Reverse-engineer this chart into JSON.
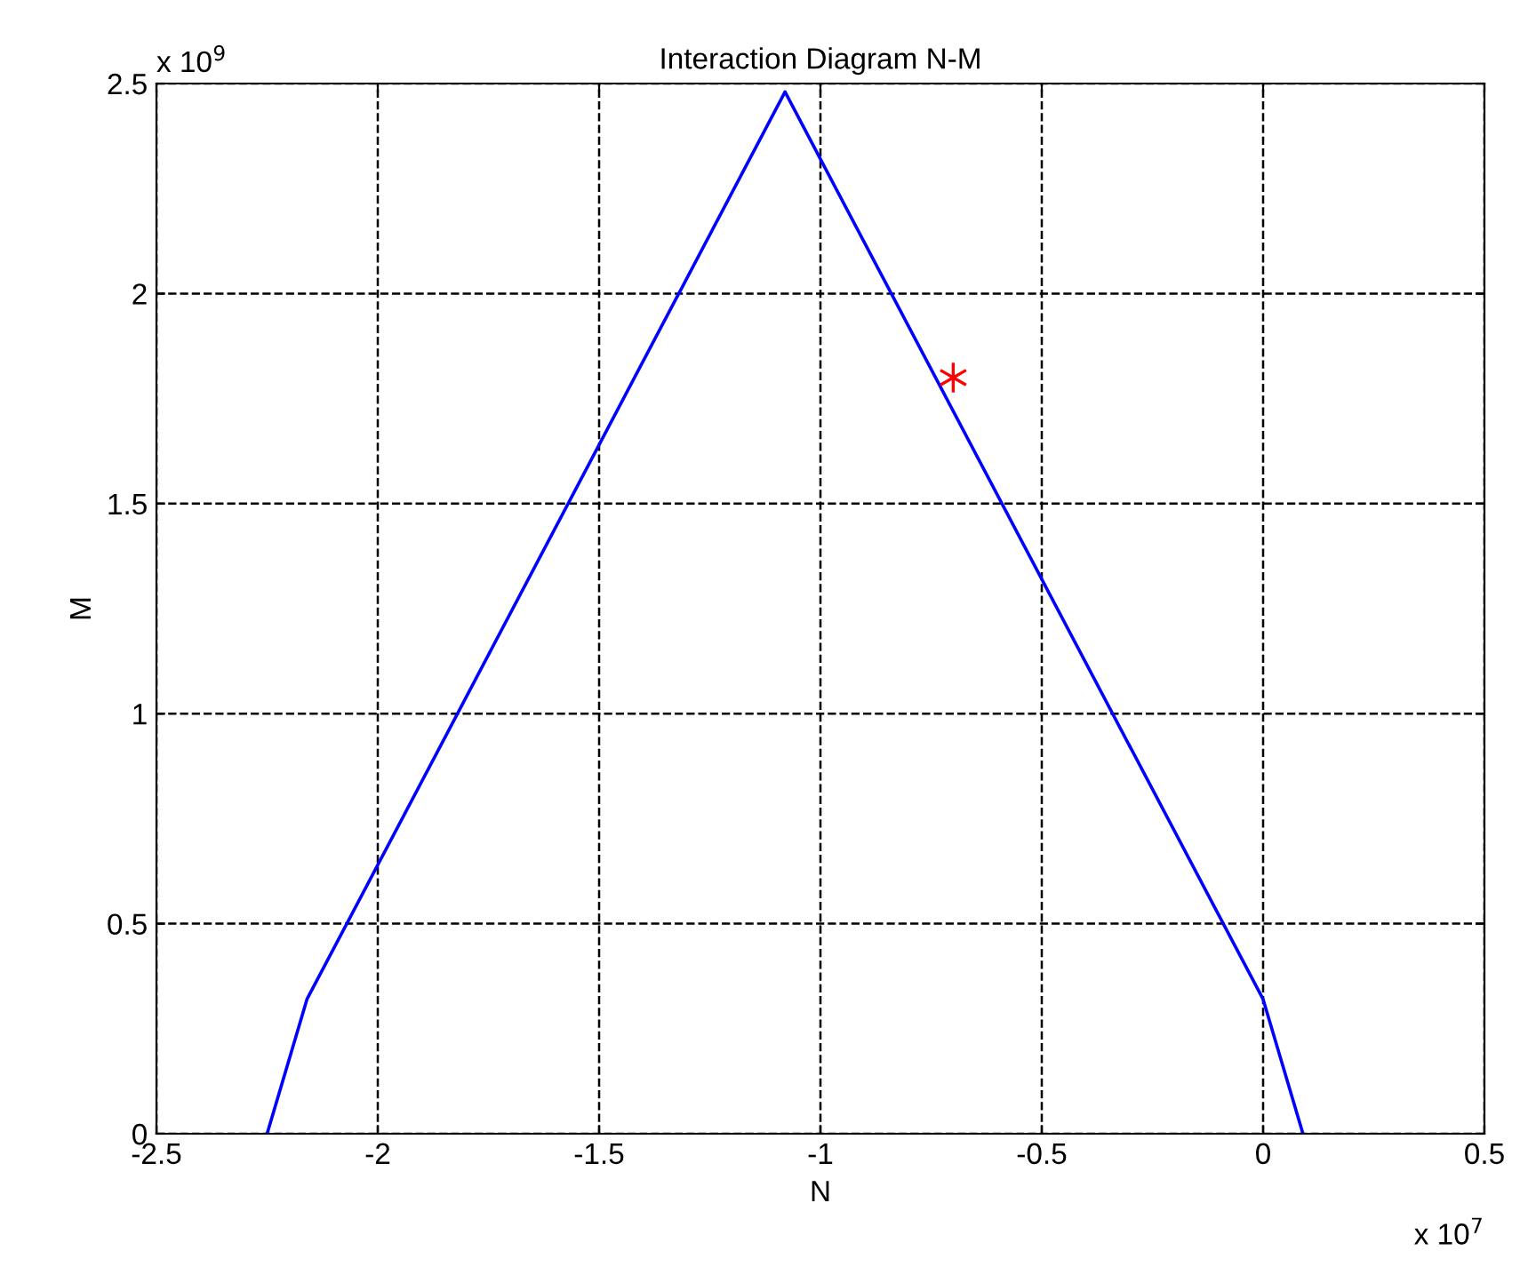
{
  "chart_data": {
    "type": "line",
    "title": "Interaction Diagram N-M",
    "xlabel": "N",
    "ylabel": "M",
    "series": [
      {
        "color": "#0000ff",
        "x": [
          -2.25,
          -2.16,
          -1.08,
          0.0,
          0.09
        ],
        "values": [
          0,
          0.32,
          2.48,
          0.32,
          0
        ],
        "marker": "none"
      },
      {
        "type": "scatter",
        "color": "#ff0000",
        "x": [
          -0.7
        ],
        "values": [
          1.8
        ],
        "marker": "cross"
      }
    ],
    "annotations": [
      "x 10$^{7}$",
      "x 10$^{9}$"
    ],
    "xlim": [
      -2.5,
      0.5
    ],
    "xticks": [
      -2.5,
      -2,
      -1.5,
      -1,
      -0.5,
      0,
      0.5
    ],
    "ylim": [
      0,
      2.5
    ],
    "yticks": [
      0,
      0.5,
      1,
      1.5,
      2,
      2.5
    ],
    "grid": true,
    "legend": false
  }
}
